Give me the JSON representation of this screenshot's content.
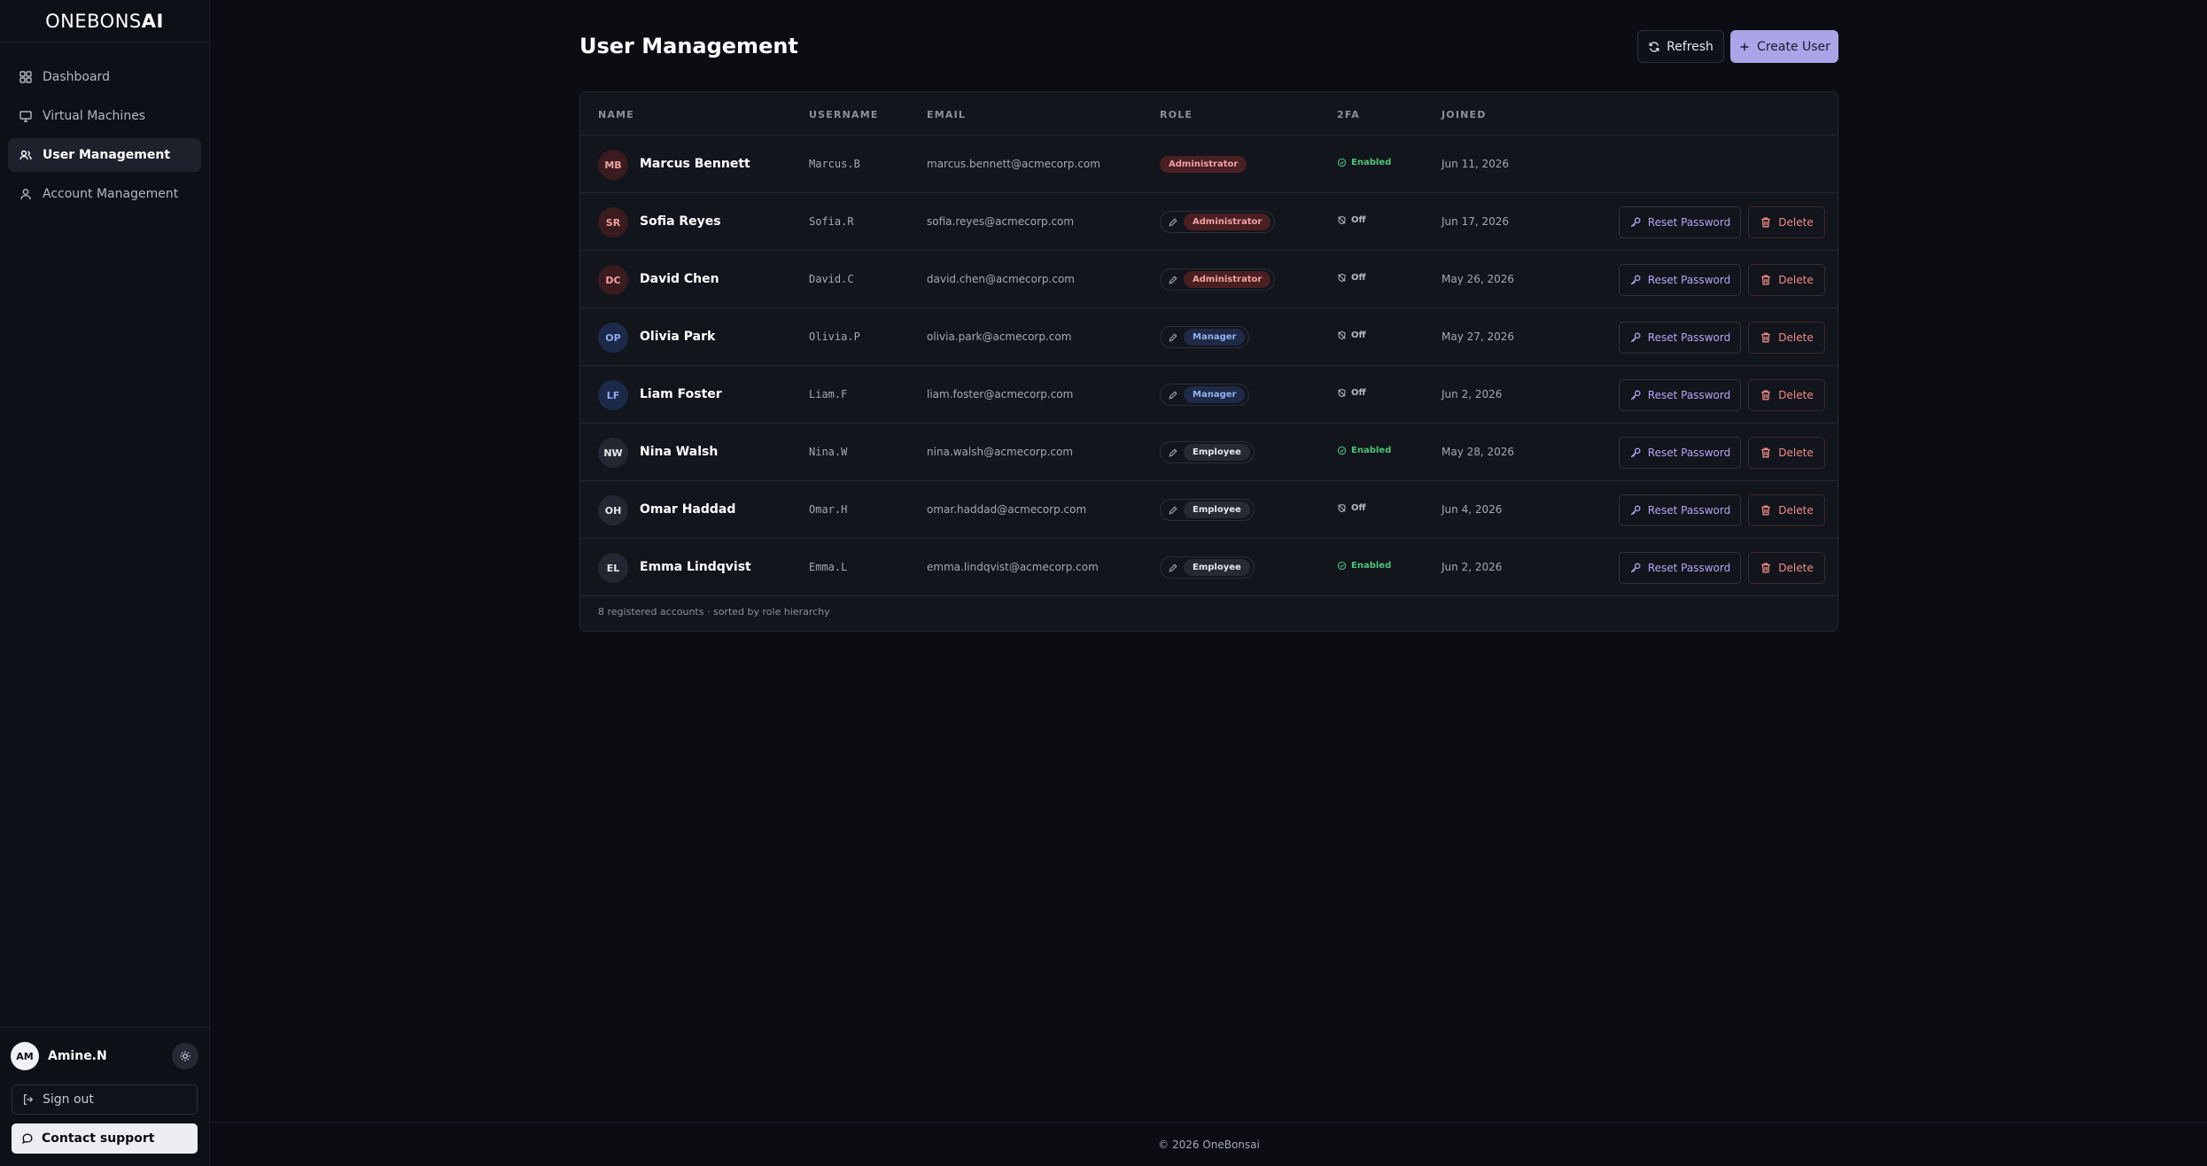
{
  "brand": {
    "thin": "ONEBONS",
    "bold": "AI"
  },
  "sidebar": {
    "items": [
      {
        "label": "Dashboard",
        "icon": "dashboard-icon"
      },
      {
        "label": "Virtual Machines",
        "icon": "monitor-icon"
      },
      {
        "label": "User Management",
        "icon": "users-icon",
        "active": true
      },
      {
        "label": "Account Management",
        "icon": "user-icon"
      }
    ],
    "current_user": {
      "initials": "AM",
      "name": "Amine.N"
    },
    "signout_label": "Sign out",
    "support_label": "Contact support"
  },
  "page": {
    "title": "User Management",
    "refresh_label": "Refresh",
    "create_label": "Create User"
  },
  "table": {
    "columns": {
      "name": "NAME",
      "username": "USERNAME",
      "email": "EMAIL",
      "role": "ROLE",
      "twofa": "2FA",
      "joined": "JOINED"
    },
    "rows": [
      {
        "initials": "MB",
        "name": "Marcus Bennett",
        "username": "Marcus.B",
        "email": "marcus.bennett@acmecorp.com",
        "role": "Administrator",
        "twofa": "Enabled",
        "joined": "Jun 11, 2026"
      },
      {
        "initials": "SR",
        "name": "Sofia Reyes",
        "username": "Sofia.R",
        "email": "sofia.reyes@acmecorp.com",
        "role": "Administrator",
        "twofa": "Off",
        "joined": "Jun 17, 2026"
      },
      {
        "initials": "DC",
        "name": "David Chen",
        "username": "David.C",
        "email": "david.chen@acmecorp.com",
        "role": "Administrator",
        "twofa": "Off",
        "joined": "May 26, 2026"
      },
      {
        "initials": "OP",
        "name": "Olivia Park",
        "username": "Olivia.P",
        "email": "olivia.park@acmecorp.com",
        "role": "Manager",
        "twofa": "Off",
        "joined": "May 27, 2026"
      },
      {
        "initials": "LF",
        "name": "Liam Foster",
        "username": "Liam.F",
        "email": "liam.foster@acmecorp.com",
        "role": "Manager",
        "twofa": "Off",
        "joined": "Jun 2, 2026"
      },
      {
        "initials": "NW",
        "name": "Nina Walsh",
        "username": "Nina.W",
        "email": "nina.walsh@acmecorp.com",
        "role": "Employee",
        "twofa": "Enabled",
        "joined": "May 28, 2026"
      },
      {
        "initials": "OH",
        "name": "Omar Haddad",
        "username": "Omar.H",
        "email": "omar.haddad@acmecorp.com",
        "role": "Employee",
        "twofa": "Off",
        "joined": "Jun 4, 2026"
      },
      {
        "initials": "EL",
        "name": "Emma Lindqvist",
        "username": "Emma.L",
        "email": "emma.lindqvist@acmecorp.com",
        "role": "Employee",
        "twofa": "Enabled",
        "joined": "Jun 2, 2026"
      }
    ],
    "reset_label": "Reset Password",
    "delete_label": "Delete",
    "footer_note": "8 registered accounts · sorted by role hierarchy"
  },
  "colors": {
    "accent": "#a9a5e6",
    "admin": "#f0a1a0",
    "manager": "#93b1ee",
    "enabled": "#4cc47a",
    "danger": "#f08a88"
  },
  "footer": {
    "copyright": "© 2026 OneBonsai"
  }
}
